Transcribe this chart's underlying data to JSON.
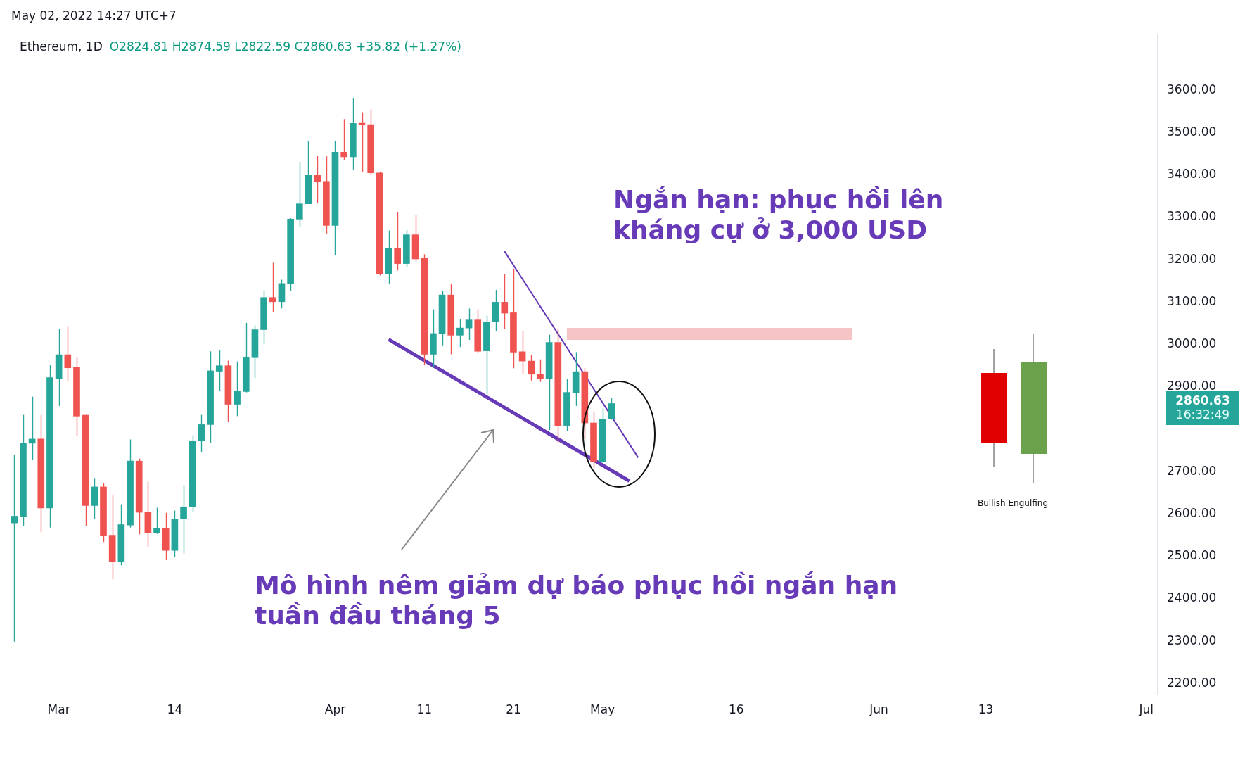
{
  "chart_data": {
    "type": "candlestick",
    "title": "Ethereum, 1D",
    "subtitle": "O2824.81 H2874.59 L2822.59 C2860.63 +35.82 (+1.27%)",
    "x": [
      "2022-02-24",
      "2022-02-25",
      "2022-02-26",
      "2022-02-27",
      "2022-02-28",
      "2022-03-01",
      "2022-03-02",
      "2022-03-03",
      "2022-03-04",
      "2022-03-05",
      "2022-03-06",
      "2022-03-07",
      "2022-03-08",
      "2022-03-09",
      "2022-03-10",
      "2022-03-11",
      "2022-03-12",
      "2022-03-13",
      "2022-03-14",
      "2022-03-15",
      "2022-03-16",
      "2022-03-17",
      "2022-03-18",
      "2022-03-19",
      "2022-03-20",
      "2022-03-21",
      "2022-03-22",
      "2022-03-23",
      "2022-03-24",
      "2022-03-25",
      "2022-03-26",
      "2022-03-27",
      "2022-03-28",
      "2022-03-29",
      "2022-03-30",
      "2022-03-31",
      "2022-04-01",
      "2022-04-02",
      "2022-04-03",
      "2022-04-04",
      "2022-04-05",
      "2022-04-06",
      "2022-04-07",
      "2022-04-08",
      "2022-04-09",
      "2022-04-10",
      "2022-04-11",
      "2022-04-12",
      "2022-04-13",
      "2022-04-14",
      "2022-04-15",
      "2022-04-16",
      "2022-04-17",
      "2022-04-18",
      "2022-04-19",
      "2022-04-20",
      "2022-04-21",
      "2022-04-22",
      "2022-04-23",
      "2022-04-24",
      "2022-04-25",
      "2022-04-26",
      "2022-04-27",
      "2022-04-28",
      "2022-04-29",
      "2022-04-30",
      "2022-05-01",
      "2022-05-02"
    ],
    "ohlc": [
      [
        2579,
        2739,
        2299,
        2595
      ],
      [
        2593,
        2834,
        2572,
        2767
      ],
      [
        2767,
        2877,
        2728,
        2777
      ],
      [
        2777,
        2834,
        2557,
        2614
      ],
      [
        2614,
        2951,
        2568,
        2922
      ],
      [
        2920,
        3037,
        2855,
        2976
      ],
      [
        2976,
        3043,
        2914,
        2945
      ],
      [
        2946,
        2970,
        2785,
        2831
      ],
      [
        2833,
        2834,
        2572,
        2620
      ],
      [
        2620,
        2685,
        2589,
        2664
      ],
      [
        2664,
        2674,
        2534,
        2549
      ],
      [
        2550,
        2646,
        2446,
        2488
      ],
      [
        2488,
        2623,
        2479,
        2575
      ],
      [
        2574,
        2776,
        2568,
        2725
      ],
      [
        2725,
        2731,
        2552,
        2604
      ],
      [
        2604,
        2676,
        2522,
        2556
      ],
      [
        2556,
        2615,
        2553,
        2567
      ],
      [
        2567,
        2603,
        2491,
        2514
      ],
      [
        2514,
        2608,
        2499,
        2588
      ],
      [
        2588,
        2668,
        2507,
        2617
      ],
      [
        2617,
        2786,
        2604,
        2773
      ],
      [
        2773,
        2834,
        2747,
        2811
      ],
      [
        2811,
        2984,
        2767,
        2938
      ],
      [
        2937,
        2986,
        2891,
        2950
      ],
      [
        2950,
        2962,
        2817,
        2859
      ],
      [
        2859,
        2960,
        2831,
        2890
      ],
      [
        2889,
        3051,
        2887,
        2969
      ],
      [
        2969,
        3045,
        2921,
        3035
      ],
      [
        3035,
        3128,
        3001,
        3111
      ],
      [
        3111,
        3193,
        3077,
        3101
      ],
      [
        3101,
        3153,
        3085,
        3144
      ],
      [
        3144,
        3298,
        3127,
        3296
      ],
      [
        3296,
        3431,
        3277,
        3332
      ],
      [
        3332,
        3481,
        3332,
        3400
      ],
      [
        3400,
        3446,
        3334,
        3385
      ],
      [
        3385,
        3444,
        3262,
        3281
      ],
      [
        3281,
        3481,
        3211,
        3454
      ],
      [
        3454,
        3532,
        3435,
        3443
      ],
      [
        3443,
        3582,
        3413,
        3522
      ],
      [
        3522,
        3548,
        3407,
        3519
      ],
      [
        3519,
        3555,
        3401,
        3405
      ],
      [
        3405,
        3408,
        3163,
        3166
      ],
      [
        3166,
        3269,
        3144,
        3227
      ],
      [
        3227,
        3313,
        3175,
        3191
      ],
      [
        3191,
        3270,
        3182,
        3259
      ],
      [
        3259,
        3306,
        3196,
        3202
      ],
      [
        3203,
        3213,
        2951,
        2977
      ],
      [
        2977,
        3083,
        2948,
        3026
      ],
      [
        3026,
        3126,
        2998,
        3117
      ],
      [
        3117,
        3144,
        2977,
        3022
      ],
      [
        3022,
        3060,
        2994,
        3039
      ],
      [
        3039,
        3085,
        3011,
        3058
      ],
      [
        3058,
        3083,
        2981,
        2984
      ],
      [
        2985,
        3068,
        2883,
        3053
      ],
      [
        3053,
        3129,
        3032,
        3100
      ],
      [
        3100,
        3166,
        3036,
        3074
      ],
      [
        3075,
        3179,
        2944,
        2982
      ],
      [
        2983,
        3032,
        2930,
        2961
      ],
      [
        2961,
        2976,
        2915,
        2930
      ],
      [
        2930,
        2965,
        2912,
        2920
      ],
      [
        2920,
        3023,
        2798,
        3005
      ],
      [
        3005,
        3037,
        2767,
        2809
      ],
      [
        2809,
        2918,
        2795,
        2887
      ],
      [
        2887,
        2982,
        2855,
        2936
      ],
      [
        2936,
        2945,
        2778,
        2815
      ],
      [
        2815,
        2841,
        2709,
        2724
      ],
      [
        2724,
        2849,
        2720,
        2824
      ],
      [
        2824.81,
        2874.59,
        2822.59,
        2860.63
      ]
    ],
    "colors": [
      "#26a69a",
      "#26a69a",
      "#26a69a",
      "#ef5350",
      "#26a69a",
      "#26a69a",
      "#ef5350",
      "#ef5350",
      "#ef5350",
      "#26a69a",
      "#ef5350",
      "#ef5350",
      "#26a69a",
      "#26a69a",
      "#ef5350",
      "#ef5350",
      "#26a69a",
      "#ef5350",
      "#26a69a",
      "#26a69a",
      "#26a69a",
      "#26a69a",
      "#26a69a",
      "#26a69a",
      "#ef5350",
      "#26a69a",
      "#26a69a",
      "#26a69a",
      "#26a69a",
      "#ef5350",
      "#26a69a",
      "#26a69a",
      "#26a69a",
      "#26a69a",
      "#ef5350",
      "#ef5350",
      "#26a69a",
      "#ef5350",
      "#26a69a",
      "#ef5350",
      "#ef5350",
      "#ef5350",
      "#26a69a",
      "#ef5350",
      "#26a69a",
      "#ef5350",
      "#ef5350",
      "#26a69a",
      "#26a69a",
      "#ef5350",
      "#26a69a",
      "#26a69a",
      "#ef5350",
      "#26a69a",
      "#26a69a",
      "#ef5350",
      "#ef5350",
      "#ef5350",
      "#ef5350",
      "#ef5350",
      "#26a69a",
      "#ef5350",
      "#26a69a",
      "#26a69a",
      "#ef5350",
      "#ef5350",
      "#26a69a",
      "#26a69a"
    ],
    "series": [
      {
        "type": "line",
        "color": "#673ab7",
        "x": [
          "2022-04-07",
          "2022-05-04"
        ],
        "values": [
          3012,
          2678
        ]
      },
      {
        "type": "line",
        "color": "#673ab7",
        "x": [
          "2022-04-20",
          "2022-05-05"
        ],
        "values": [
          3220,
          2733
        ]
      },
      {
        "type": "line",
        "color": "#f7c4c6",
        "x": [
          "2022-04-27",
          "2022-05-29"
        ],
        "values": [
          3025,
          3025
        ]
      }
    ],
    "xlim": [
      "2022-02-23T14:00",
      "2022-07-02T05:00"
    ],
    "xticks": [
      {
        "value": "2022-03-01",
        "label": "Mar"
      },
      {
        "value": "2022-03-14",
        "label": "14"
      },
      {
        "value": "2022-04-01",
        "label": "Apr"
      },
      {
        "value": "2022-04-11",
        "label": "11"
      },
      {
        "value": "2022-04-21",
        "label": "21"
      },
      {
        "value": "2022-05-01",
        "label": "May"
      },
      {
        "value": "2022-05-16",
        "label": "16"
      },
      {
        "value": "2022-06-01",
        "label": "Jun"
      },
      {
        "value": "2022-06-13",
        "label": "13"
      },
      {
        "value": "2022-07-01",
        "label": "Jul"
      }
    ],
    "ylim": [
      2173,
      3733
    ],
    "yticks": [
      {
        "value": 2200,
        "label": "2200.00"
      },
      {
        "value": 2300,
        "label": "2300.00"
      },
      {
        "value": 2400,
        "label": "2400.00"
      },
      {
        "value": 2500,
        "label": "2500.00"
      },
      {
        "value": 2600,
        "label": "2600.00"
      },
      {
        "value": 2700,
        "label": "2700.00"
      },
      {
        "value": 2900,
        "label": "2900.00"
      },
      {
        "value": 3000,
        "label": "3000.00"
      },
      {
        "value": 3100,
        "label": "3100.00"
      },
      {
        "value": 3200,
        "label": "3200.00"
      },
      {
        "value": 3300,
        "label": "3300.00"
      },
      {
        "value": 3400,
        "label": "3400.00"
      },
      {
        "value": 3500,
        "label": "3500.00"
      },
      {
        "value": 3600,
        "label": "3600.00"
      }
    ],
    "annotations": [
      "May 02, 2022 14:27 UTC+7",
      "Ngắn hạn: phục hồi lên kháng cự ở 3,000 USD",
      "Mô hình nêm giảm dự báo phục hồi ngắn hạn tuần đầu tháng 5",
      "Bullish Engulfing",
      "2860.63",
      "16:32:49"
    ],
    "grid": false,
    "legend": false
  }
}
